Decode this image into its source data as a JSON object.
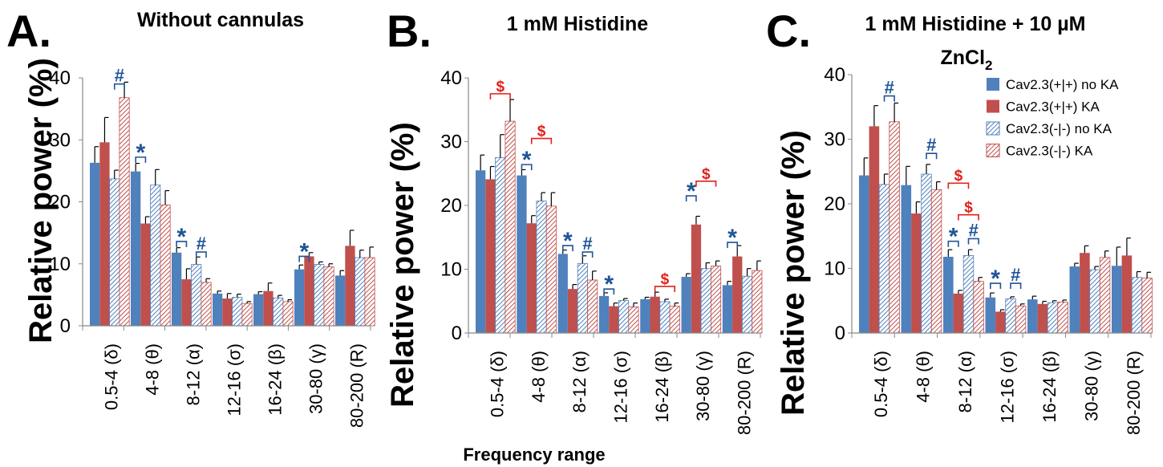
{
  "xlabel": "Frequency range",
  "colors": {
    "blue": "#4f81bd",
    "red": "#c0504d",
    "hatch_blue": "#4f81bd",
    "hatch_red": "#c0504d",
    "sig_blue": "#1f5496",
    "sig_red": "#e0201a"
  },
  "legend": [
    {
      "label": "Cav2.3(+|+) no KA",
      "style": "blue"
    },
    {
      "label": "Cav2.3(+|+) KA",
      "style": "red"
    },
    {
      "label": "Cav2.3(-|-) no KA",
      "style": "hatch_blue"
    },
    {
      "label": "Cav2.3(-|-) KA",
      "style": "hatch_red"
    }
  ],
  "chart_data": [
    {
      "type": "bar",
      "panel": "A.",
      "title": "Without cannulas",
      "ylabel": "Relative power (%)",
      "ylim": [
        0,
        40
      ],
      "yticks": [
        0,
        10,
        20,
        30,
        40
      ],
      "categories": [
        "0.5-4 (δ)",
        "4-8 (θ)",
        "8-12 (α)",
        "12-16 (σ)",
        "16-24 (β)",
        "30-80 (γ)",
        "80-200 (R)"
      ],
      "series": [
        {
          "name": "Cav2.3(+|+) no KA",
          "values": [
            26.3,
            24.9,
            11.8,
            5.2,
            5.1,
            9.1,
            8.1
          ],
          "errors": [
            2.6,
            1.3,
            0.8,
            0.4,
            0.4,
            0.7,
            0.8
          ]
        },
        {
          "name": "Cav2.3(+|+) KA",
          "values": [
            29.6,
            16.5,
            7.5,
            4.4,
            5.6,
            11.2,
            12.9
          ],
          "errors": [
            4.0,
            1.1,
            1.7,
            0.8,
            1.3,
            0.6,
            2.5
          ]
        },
        {
          "name": "Cav2.3(-|-) no KA",
          "values": [
            23.7,
            22.7,
            9.9,
            4.6,
            4.5,
            9.9,
            11.0
          ],
          "errors": [
            1.4,
            2.5,
            1.2,
            0.5,
            0.4,
            0.4,
            1.2
          ]
        },
        {
          "name": "Cav2.3(-|-) KA",
          "values": [
            36.8,
            19.5,
            7.0,
            3.6,
            3.9,
            9.5,
            11.0
          ],
          "errors": [
            2.5,
            2.3,
            0.6,
            0.3,
            0.3,
            0.5,
            1.7
          ]
        }
      ],
      "annotations": [
        {
          "text": "#",
          "color": "sig_blue",
          "cat": 0,
          "from": 2,
          "to": 3,
          "y": 39.0
        },
        {
          "text": "*",
          "color": "sig_blue",
          "cat": 1,
          "from": 0,
          "to": 1,
          "y": 27.2
        },
        {
          "text": "*",
          "color": "sig_blue",
          "cat": 2,
          "from": 0,
          "to": 1,
          "y": 13.6
        },
        {
          "text": "#",
          "color": "sig_blue",
          "cat": 2,
          "from": 2,
          "to": 3,
          "y": 11.9
        },
        {
          "text": "*",
          "color": "sig_blue",
          "cat": 5,
          "from": 0,
          "to": 1,
          "y": 11.2
        }
      ]
    },
    {
      "type": "bar",
      "panel": "B.",
      "title": "1 mM Histidine",
      "ylabel": "Relative power (%)",
      "ylim": [
        0,
        40
      ],
      "yticks": [
        0,
        10,
        20,
        30,
        40
      ],
      "categories": [
        "0.5-4 (δ)",
        "4-8 (θ)",
        "8-12 (α)",
        "12-16 (σ)",
        "16-24 (β)",
        "30-80 (γ)",
        "80-200 (R)"
      ],
      "series": [
        {
          "name": "Cav2.3(+|+) no KA",
          "values": [
            25.5,
            24.7,
            12.4,
            5.8,
            5.3,
            8.8,
            7.5
          ],
          "errors": [
            2.4,
            0.9,
            0.6,
            0.5,
            0.3,
            0.5,
            0.6
          ]
        },
        {
          "name": "Cav2.3(+|+) KA",
          "values": [
            24.1,
            17.2,
            6.9,
            4.2,
            5.7,
            17.0,
            12.0
          ],
          "errors": [
            2.0,
            1.2,
            0.7,
            0.5,
            0.7,
            1.3,
            1.7
          ]
        },
        {
          "name": "Cav2.3(-|-) no KA",
          "values": [
            27.5,
            20.7,
            10.9,
            5.1,
            4.9,
            10.1,
            8.9
          ],
          "errors": [
            3.6,
            1.3,
            1.2,
            0.3,
            0.4,
            0.9,
            1.2
          ]
        },
        {
          "name": "Cav2.3(-|-) KA",
          "values": [
            33.2,
            19.9,
            8.3,
            4.1,
            4.2,
            10.5,
            9.8
          ],
          "errors": [
            3.4,
            2.1,
            1.4,
            0.6,
            0.5,
            0.8,
            1.5
          ]
        }
      ],
      "annotations": [
        {
          "text": "$",
          "color": "sig_red",
          "cat": 0,
          "from": 1,
          "to": 3,
          "y": 37.5
        },
        {
          "text": "*",
          "color": "sig_blue",
          "cat": 1,
          "from": 0,
          "to": 1,
          "y": 26.4
        },
        {
          "text": "$",
          "color": "sig_red",
          "cat": 1,
          "from": 1,
          "to": 3,
          "y": 30.5
        },
        {
          "text": "*",
          "color": "sig_blue",
          "cat": 2,
          "from": 0,
          "to": 1,
          "y": 13.7
        },
        {
          "text": "#",
          "color": "sig_blue",
          "cat": 2,
          "from": 2,
          "to": 3,
          "y": 12.7
        },
        {
          "text": "*",
          "color": "sig_blue",
          "cat": 3,
          "from": 0,
          "to": 1,
          "y": 6.9
        },
        {
          "text": "$",
          "color": "sig_red",
          "cat": 4,
          "from": 1,
          "to": 3,
          "y": 7.3
        },
        {
          "text": "*",
          "color": "sig_blue",
          "cat": 5,
          "from": 0,
          "to": 1,
          "y": 21.5
        },
        {
          "text": "$",
          "color": "sig_red",
          "cat": 5,
          "from": 1,
          "to": 3,
          "y": 23.8
        },
        {
          "text": "*",
          "color": "sig_blue",
          "cat": 6,
          "from": 0,
          "to": 1,
          "y": 14.2
        }
      ]
    },
    {
      "type": "bar",
      "panel": "C.",
      "title": "1 mM Histidine + 10 µM",
      "title_line2": "ZnCl",
      "title_line2_sub": "2",
      "ylabel": "Relative power (%)",
      "ylim": [
        0,
        40
      ],
      "yticks": [
        0,
        10,
        20,
        30,
        40
      ],
      "categories": [
        "0.5-4 (δ)",
        "4-8 (θ)",
        "8-12 (α)",
        "12-16 (σ)",
        "16-24 (β)",
        "30-80 (γ)",
        "80-200 (R)"
      ],
      "series": [
        {
          "name": "Cav2.3(+|+) no KA",
          "values": [
            24.4,
            22.9,
            11.8,
            5.5,
            5.2,
            10.3,
            10.4
          ],
          "errors": [
            2.7,
            2.9,
            1.1,
            0.7,
            0.5,
            0.5,
            2.9
          ]
        },
        {
          "name": "Cav2.3(+|+) KA",
          "values": [
            32.0,
            18.5,
            6.1,
            3.3,
            4.5,
            12.4,
            12.0
          ],
          "errors": [
            3.2,
            1.8,
            0.5,
            0.3,
            0.4,
            1.1,
            2.7
          ]
        },
        {
          "name": "Cav2.3(-|-) no KA",
          "values": [
            23.0,
            24.6,
            12.0,
            5.3,
            4.7,
            9.8,
            8.6
          ],
          "errors": [
            1.6,
            1.5,
            0.9,
            0.3,
            0.3,
            0.5,
            0.9
          ]
        },
        {
          "name": "Cav2.3(-|-) KA",
          "values": [
            32.7,
            22.2,
            8.0,
            4.2,
            4.8,
            11.7,
            8.5
          ],
          "errors": [
            2.9,
            1.2,
            0.6,
            0.3,
            0.3,
            1.0,
            0.9
          ]
        }
      ],
      "annotations": [
        {
          "text": "#",
          "color": "sig_blue",
          "cat": 0,
          "from": 2,
          "to": 3,
          "y": 36.7
        },
        {
          "text": "#",
          "color": "sig_blue",
          "cat": 1,
          "from": 2,
          "to": 3,
          "y": 27.8
        },
        {
          "text": "$",
          "color": "sig_red",
          "cat": 2,
          "from": 0,
          "to": 2,
          "y": 23.2
        },
        {
          "text": "$",
          "color": "sig_red",
          "cat": 2,
          "from": 1,
          "to": 3,
          "y": 18.3
        },
        {
          "text": "*",
          "color": "sig_blue",
          "cat": 2,
          "from": 0,
          "to": 1,
          "y": 14.2
        },
        {
          "text": "#",
          "color": "sig_blue",
          "cat": 2,
          "from": 2,
          "to": 3,
          "y": 14.6
        },
        {
          "text": "*",
          "color": "sig_blue",
          "cat": 3,
          "from": 0,
          "to": 1,
          "y": 7.7
        },
        {
          "text": "#",
          "color": "sig_blue",
          "cat": 3,
          "from": 2,
          "to": 3,
          "y": 7.7
        }
      ]
    }
  ]
}
